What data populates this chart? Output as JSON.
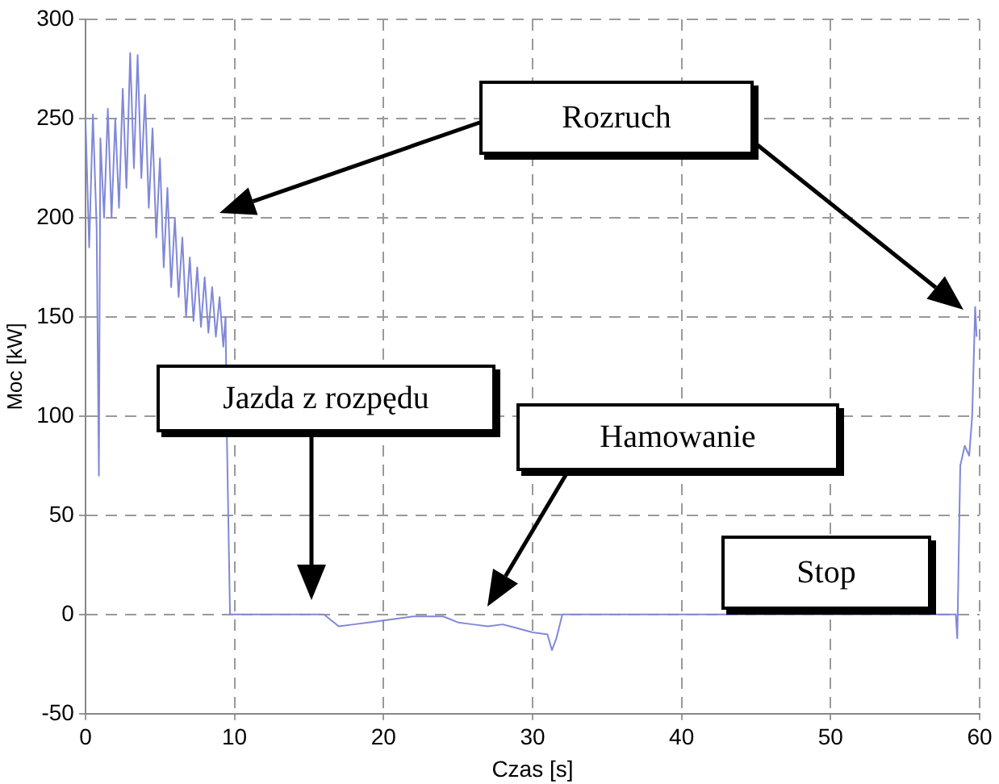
{
  "chart_data": {
    "type": "line",
    "xlabel": "Czas [s]",
    "ylabel": "Moc [kW]",
    "xlim": [
      0,
      60
    ],
    "xticks": [
      0,
      10,
      20,
      30,
      40,
      50,
      60
    ],
    "ylim": [
      -50,
      300
    ],
    "yticks": [
      -50,
      0,
      50,
      100,
      150,
      200,
      250,
      300
    ],
    "grid": true,
    "marker": "none",
    "line_style": "solid",
    "annotations": [
      "Rozruch",
      "Jazda z rozpędu",
      "Hamowanie",
      "Stop"
    ],
    "series": [
      {
        "color": "#8088d8",
        "x": [
          0,
          0.25,
          0.5,
          0.75,
          0.9,
          1.0,
          1.25,
          1.5,
          1.75,
          2.0,
          2.25,
          2.5,
          2.75,
          3.0,
          3.25,
          3.5,
          3.75,
          4.0,
          4.25,
          4.5,
          4.75,
          5.0,
          5.25,
          5.5,
          5.75,
          6.0,
          6.25,
          6.5,
          6.75,
          7.0,
          7.25,
          7.5,
          7.75,
          8.0,
          8.25,
          8.5,
          8.75,
          9.0,
          9.25,
          9.4,
          9.5,
          9.7,
          16,
          16.5,
          17,
          18,
          19,
          20,
          21,
          22,
          24,
          25,
          26,
          27,
          28,
          29,
          30,
          31,
          31.3,
          31.6,
          32,
          58.4,
          58.5,
          58.7,
          59,
          59.3,
          59.5,
          59.7,
          59.8
        ],
        "values": [
          250,
          185,
          252,
          195,
          70,
          240,
          200,
          255,
          200,
          250,
          205,
          265,
          215,
          283,
          225,
          282,
          220,
          262,
          205,
          245,
          190,
          230,
          175,
          215,
          165,
          200,
          160,
          190,
          150,
          180,
          148,
          175,
          145,
          170,
          142,
          165,
          140,
          160,
          135,
          150,
          85,
          0,
          0,
          -3,
          -6,
          -5,
          -4,
          -3,
          -2,
          -1,
          -1,
          -4,
          -5,
          -6,
          -5,
          -7,
          -9,
          -10,
          -18,
          -12,
          0,
          0,
          -12,
          75,
          85,
          80,
          100,
          155,
          140
        ]
      }
    ]
  }
}
